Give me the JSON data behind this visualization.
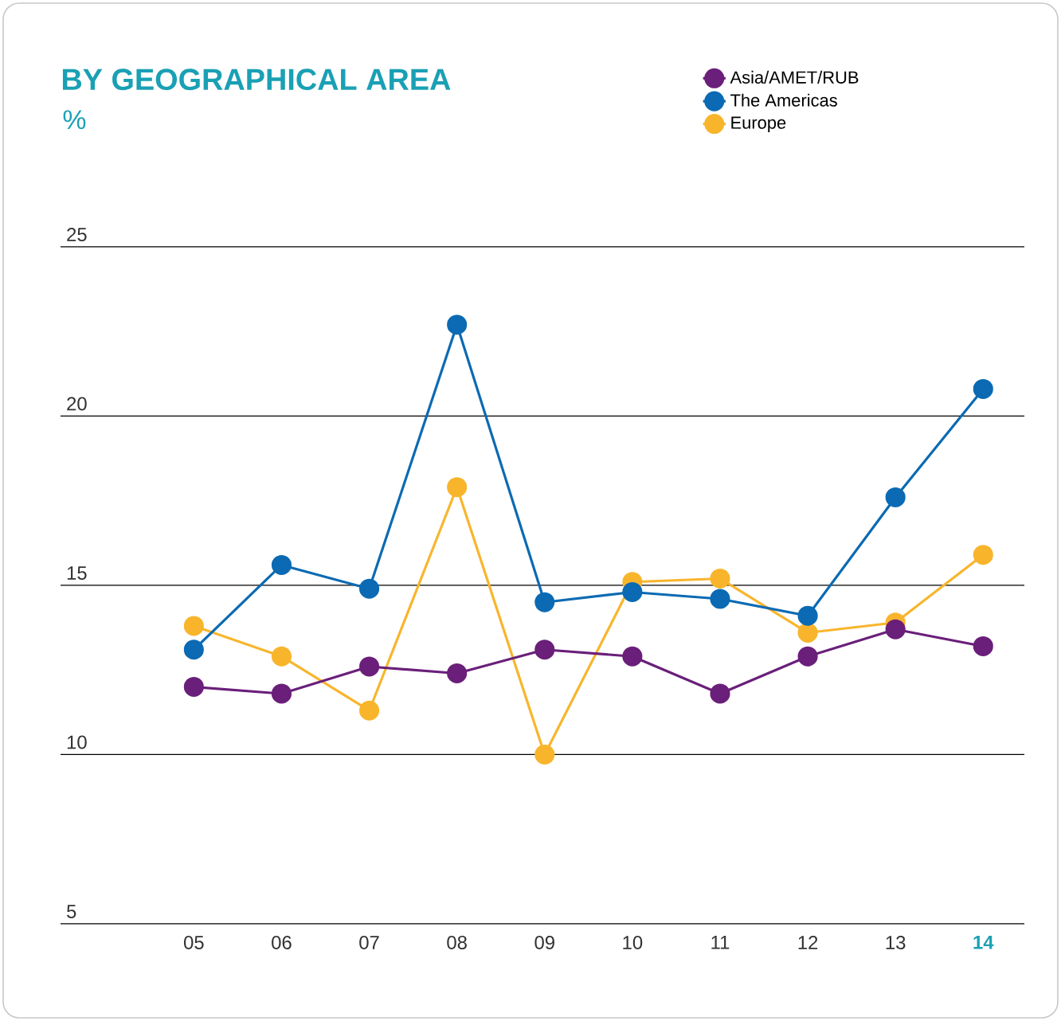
{
  "chart_data": {
    "type": "line",
    "title": "BY GEOGRAPHICAL AREA",
    "subtitle": "%",
    "categories": [
      "05",
      "06",
      "07",
      "08",
      "09",
      "10",
      "11",
      "12",
      "13",
      "14"
    ],
    "series": [
      {
        "name": "Asia/AMET/RUB",
        "color": "#6a1f7a",
        "values": [
          12.0,
          11.8,
          12.6,
          12.4,
          13.1,
          12.9,
          11.8,
          12.9,
          13.7,
          13.2
        ]
      },
      {
        "name": "The Americas",
        "color": "#0b6ab3",
        "values": [
          13.1,
          15.6,
          14.9,
          22.7,
          14.5,
          14.8,
          14.6,
          14.1,
          17.6,
          20.8
        ]
      },
      {
        "name": "Europe",
        "color": "#f8b52c",
        "values": [
          13.8,
          12.9,
          11.3,
          17.9,
          10.0,
          15.1,
          15.2,
          13.6,
          13.9,
          15.9
        ]
      }
    ],
    "ylim": [
      5,
      25
    ],
    "yticks": [
      5,
      10,
      15,
      20,
      25
    ],
    "grid": "y",
    "legend": "top right",
    "marker": "circle",
    "line_style": "solid"
  }
}
